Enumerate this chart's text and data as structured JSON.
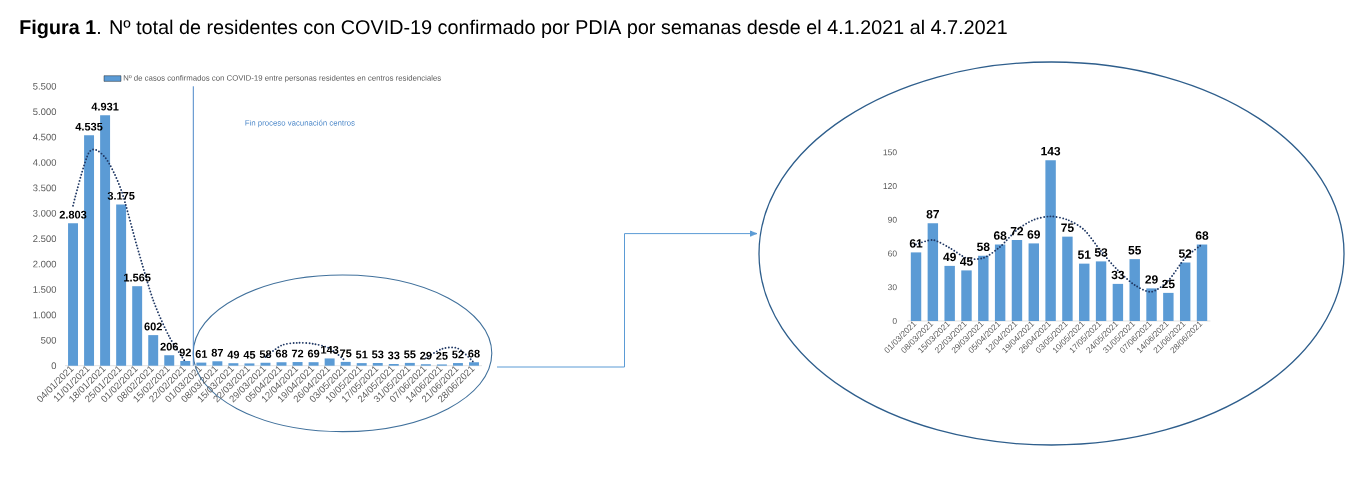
{
  "chart_data": [
    {
      "type": "bar",
      "title": "**Figura 1**. Nº total de residentes con COVID-19 confirmado por PDIA por semanas desde el 4.1.2021 al 4.7.2021",
      "categories": [
        "04/01/2021",
        "11/01/2021",
        "18/01/2021",
        "25/01/2021",
        "01/02/2021",
        "08/02/2021",
        "15/02/2021",
        "22/02/2021",
        "01/03/2021",
        "08/03/2021",
        "15/03/2021",
        "22/03/2021",
        "29/03/2021",
        "05/04/2021",
        "12/04/2021",
        "19/04/2021",
        "26/04/2021",
        "03/05/2021",
        "10/05/2021",
        "17/05/2021",
        "24/05/2021",
        "31/05/2021",
        "07/06/2021",
        "14/06/2021",
        "21/06/2021",
        "28/06/2021"
      ],
      "series": [
        {
          "name": "Nº de casos confirmados con COVID-19 entre personas residentes en centros residenciales",
          "color": "#5b9bd5",
          "values": [
            2803,
            4535,
            4931,
            3175,
            1565,
            602,
            206,
            92,
            61,
            87,
            49,
            45,
            58,
            68,
            72,
            69,
            143,
            75,
            51,
            53,
            33,
            55,
            29,
            25,
            52,
            68
          ],
          "value_labels": [
            "2.803",
            "4.535",
            "4.931",
            "3.175",
            "1.565",
            "602",
            "206",
            "92",
            "61",
            "87",
            "49",
            "45",
            "58",
            "68",
            "72",
            "69",
            "143",
            "75",
            "51",
            "53",
            "33",
            "55",
            "29",
            "25",
            "52",
            "68"
          ]
        },
        {
          "type": "line",
          "color": "#203864",
          "line_style": "dotted",
          "values": [
            3150,
            4200,
            4100,
            3460,
            2340,
            1290,
            570,
            80,
            null,
            null,
            null,
            null,
            170,
            400,
            450,
            430,
            340,
            90,
            null,
            null,
            null,
            null,
            150,
            330,
            340,
            60
          ]
        }
      ],
      "ylim": [
        0,
        5500
      ],
      "yticks": [
        0,
        500,
        {
          "value": 1000,
          "label": "1.000"
        },
        {
          "value": 1500,
          "label": "1.500"
        },
        {
          "value": 2000,
          "label": "2.000"
        },
        {
          "value": 2500,
          "label": "2.500"
        },
        {
          "value": 3000,
          "label": "3.000"
        },
        {
          "value": 3500,
          "label": "3.500"
        },
        {
          "value": 4000,
          "label": "4.000"
        },
        {
          "value": 4500,
          "label": "4.500"
        },
        {
          "value": 5000,
          "label": "5.000"
        },
        {
          "value": 5500,
          "label": "5.500"
        }
      ],
      "ref_lines": [
        {
          "axis": "x",
          "value": "01/03/2021",
          "label": "Fin proceso vacunación centros",
          "color": "#4a86c8"
        }
      ],
      "legend": "top"
    },
    {
      "type": "bar",
      "categories": [
        "01/03/2021",
        "08/03/2021",
        "15/03/2021",
        "22/03/2021",
        "29/03/2021",
        "05/04/2021",
        "12/04/2021",
        "19/04/2021",
        "26/04/2021",
        "03/05/2021",
        "10/05/2021",
        "17/05/2021",
        "24/05/2021",
        "31/05/2021",
        "07/06/2021",
        "14/06/2021",
        "21/06/2021",
        "28/06/2021"
      ],
      "series": [
        {
          "color": "#5b9bd5",
          "values": [
            61,
            87,
            49,
            45,
            58,
            68,
            72,
            69,
            143,
            75,
            51,
            53,
            33,
            55,
            29,
            25,
            52,
            68
          ],
          "value_labels": [
            "61",
            "87",
            "49",
            "45",
            "58",
            "68",
            "72",
            "69",
            "143",
            "75",
            "51",
            "53",
            "33",
            "55",
            "29",
            "25",
            "52",
            "68"
          ]
        },
        {
          "type": "line",
          "color": "#203864",
          "line_style": "dotted",
          "values": [
            68,
            72,
            65,
            56,
            56,
            66,
            81,
            90,
            93,
            90,
            81,
            62,
            45,
            32,
            26,
            36,
            56,
            68
          ]
        }
      ],
      "ylim": [
        0,
        150
      ],
      "yticks": [
        0,
        30,
        60,
        90,
        120,
        150
      ]
    }
  ]
}
